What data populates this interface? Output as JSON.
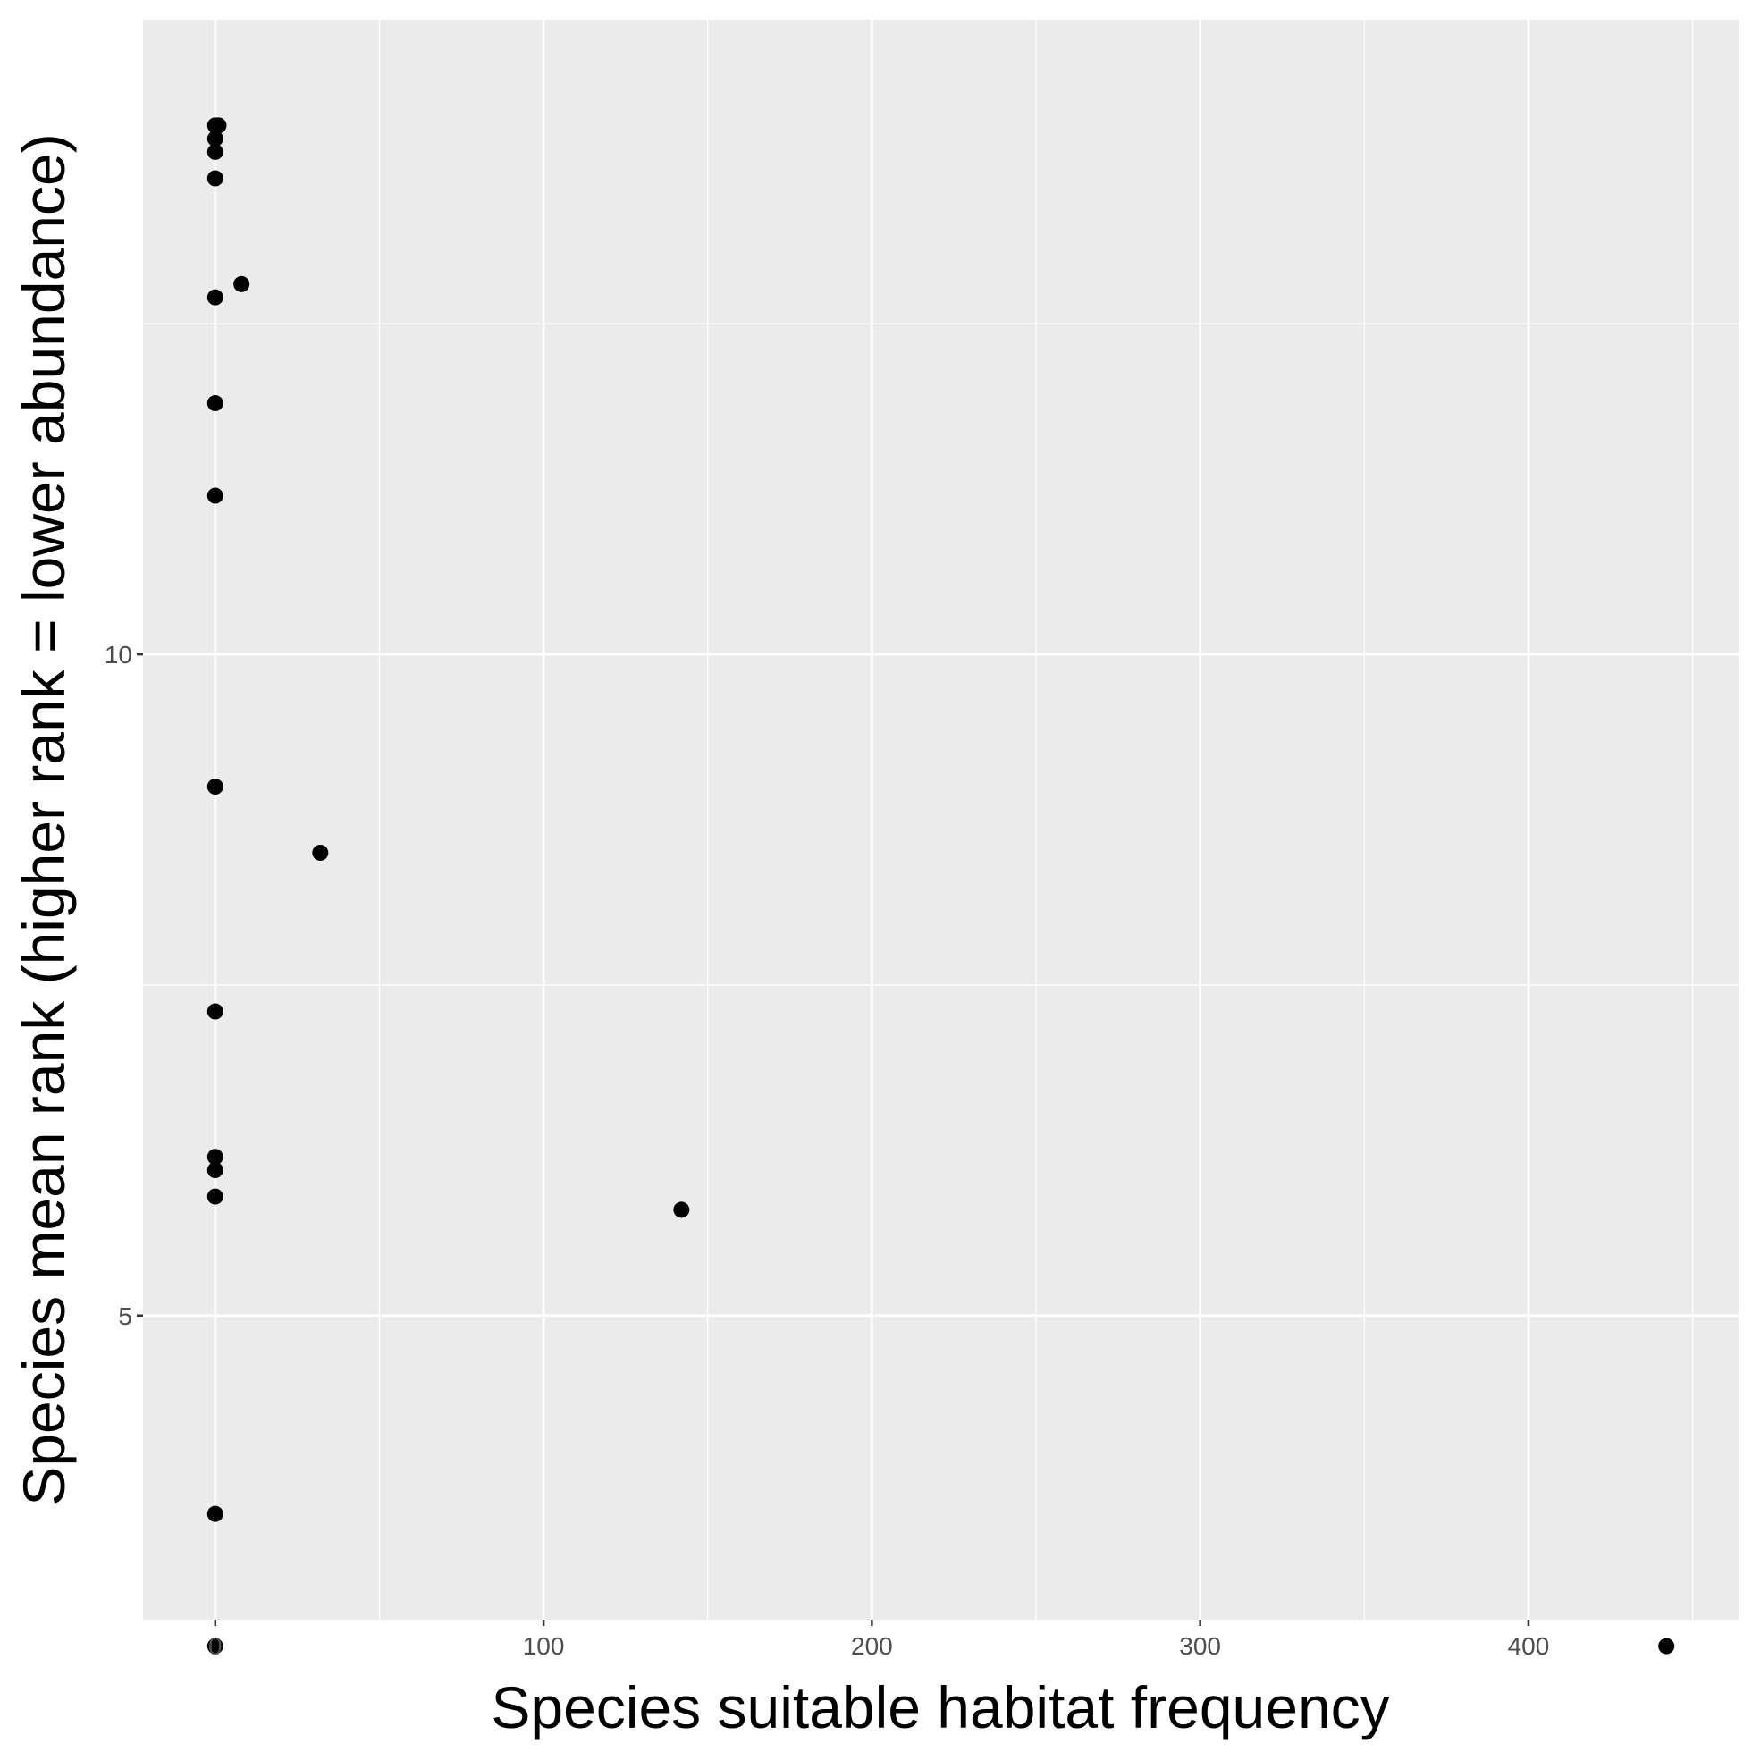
{
  "chart_data": {
    "type": "scatter",
    "title": "",
    "xlabel": "Species suitable habitat frequency",
    "ylabel": "Species mean rank (higher rank = lower abundance)",
    "xlim": [
      -22,
      464
    ],
    "ylim": [
      2.7,
      14.8
    ],
    "x_ticks": [
      0,
      100,
      200,
      300,
      400
    ],
    "x_tick_labels": [
      "0",
      "100",
      "200",
      "300",
      "400"
    ],
    "x_minor_ticks": [
      50,
      150,
      250,
      350,
      450
    ],
    "y_ticks": [
      5,
      10
    ],
    "y_tick_labels": [
      "5",
      "10"
    ],
    "y_minor_ticks": [
      2.5,
      7.5,
      12.5
    ],
    "grid": true,
    "background": "#ebebeb",
    "point_color": "#000000",
    "points": [
      {
        "x": 0,
        "y": 14.0
      },
      {
        "x": 1,
        "y": 14.0
      },
      {
        "x": 0,
        "y": 13.9
      },
      {
        "x": 0,
        "y": 13.8
      },
      {
        "x": 0,
        "y": 13.6
      },
      {
        "x": 8,
        "y": 12.8
      },
      {
        "x": 0,
        "y": 12.7
      },
      {
        "x": 0,
        "y": 11.9
      },
      {
        "x": 0,
        "y": 11.2
      },
      {
        "x": 0,
        "y": 9.0
      },
      {
        "x": 32,
        "y": 8.5
      },
      {
        "x": 0,
        "y": 7.3
      },
      {
        "x": 0,
        "y": 6.2
      },
      {
        "x": 0,
        "y": 6.1
      },
      {
        "x": 0,
        "y": 5.9
      },
      {
        "x": 142,
        "y": 5.8
      },
      {
        "x": 0,
        "y": 3.5
      },
      {
        "x": 0,
        "y": 2.5
      },
      {
        "x": 442,
        "y": 2.5
      }
    ]
  }
}
